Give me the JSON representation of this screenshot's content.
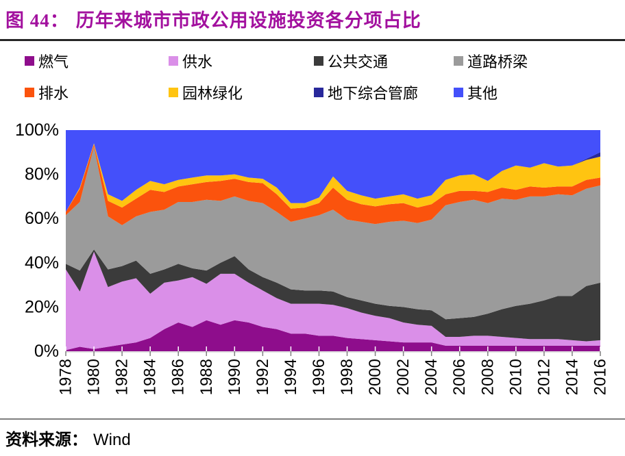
{
  "header": {
    "figure_label": "图 44：",
    "title": "历年来城市市政公用设施投资各分项占比",
    "title_color": "#A2109E"
  },
  "footer": {
    "source_label": "资料来源：",
    "source_value": "Wind"
  },
  "chart_data": {
    "type": "area",
    "stacked": true,
    "unit": "percent_share",
    "title": "历年来城市市政公用设施投资各分项占比",
    "xlabel": "",
    "ylabel": "",
    "ylim": [
      0,
      100
    ],
    "grid": false,
    "legend_position": "top",
    "y_ticks": [
      {
        "label": "100%",
        "value": 100
      },
      {
        "label": "80%",
        "value": 80
      },
      {
        "label": "60%",
        "value": 60
      },
      {
        "label": "40%",
        "value": 40
      },
      {
        "label": "20%",
        "value": 20
      },
      {
        "label": "0%",
        "value": 0
      }
    ],
    "x": [
      1978,
      1979,
      1980,
      1981,
      1982,
      1983,
      1984,
      1985,
      1986,
      1987,
      1988,
      1989,
      1990,
      1991,
      1992,
      1993,
      1994,
      1995,
      1996,
      1997,
      1998,
      1999,
      2000,
      2001,
      2002,
      2003,
      2004,
      2005,
      2006,
      2007,
      2008,
      2009,
      2010,
      2011,
      2012,
      2013,
      2014,
      2015,
      2016
    ],
    "x_tick_labels": [
      "1978",
      "1980",
      "1982",
      "1984",
      "1986",
      "1988",
      "1990",
      "1992",
      "1994",
      "1996",
      "1998",
      "2000",
      "2002",
      "2004",
      "2006",
      "2008",
      "2010",
      "2012",
      "2014",
      "2016"
    ],
    "series": [
      {
        "id": "gas",
        "name": "燃气",
        "color": "#8E0D8C",
        "values": [
          0.5,
          2,
          1,
          2,
          3,
          4,
          6,
          10,
          13,
          11,
          14,
          12,
          14,
          13,
          11,
          10,
          8,
          8,
          7,
          7,
          6,
          5.5,
          5,
          4.5,
          4,
          4,
          4,
          2.5,
          2.5,
          2.5,
          2.5,
          2.5,
          2.5,
          2.5,
          2.5,
          2.5,
          2.5,
          2.5,
          2.5
        ]
      },
      {
        "id": "water-supply",
        "name": "供水",
        "color": "#DA8FE8",
        "values": [
          36.5,
          25,
          44,
          27,
          28.5,
          29,
          20,
          21,
          19,
          22.5,
          16.5,
          23,
          21,
          18,
          16.5,
          14,
          13.5,
          13.5,
          14.5,
          14,
          13.5,
          12,
          11,
          10.5,
          9,
          8,
          7.5,
          4,
          4,
          4.5,
          4.5,
          4,
          3.5,
          3,
          3,
          3,
          2.5,
          2,
          2.5
        ]
      },
      {
        "id": "public-transit",
        "name": "公共交通",
        "color": "#3B3B3B",
        "values": [
          2.5,
          9.5,
          1,
          8,
          7,
          8,
          9,
          6,
          7.5,
          4,
          6,
          5,
          8,
          6,
          6,
          7,
          6.5,
          6,
          6,
          6,
          5,
          5.5,
          5.5,
          5.5,
          7,
          7,
          7,
          8,
          8.5,
          8.5,
          10,
          12.5,
          14.5,
          16,
          17.5,
          19.5,
          20,
          25,
          26
        ]
      },
      {
        "id": "roads-bridges",
        "name": "道路桥梁",
        "color": "#9B9B9B",
        "values": [
          22,
          31,
          46.5,
          24,
          18.5,
          20,
          28,
          27,
          28,
          30,
          32,
          28,
          27,
          31,
          33.5,
          32,
          30.5,
          32.5,
          34,
          37,
          35,
          35.5,
          36,
          38,
          39,
          39,
          41,
          51.5,
          52.5,
          53,
          50,
          50,
          48,
          48.5,
          47,
          46,
          45.5,
          44,
          44
        ]
      },
      {
        "id": "drainage",
        "name": "排水",
        "color": "#FB530D",
        "values": [
          1.5,
          6,
          1,
          7,
          8,
          8,
          10,
          8,
          7,
          8,
          8,
          9,
          8,
          8.5,
          9,
          8,
          6,
          5,
          5.5,
          10,
          9,
          8,
          8,
          8,
          8,
          7,
          7,
          5,
          5,
          4,
          5,
          5,
          4.5,
          4.5,
          4,
          3.5,
          4,
          4,
          3.5
        ]
      },
      {
        "id": "landscaping",
        "name": "园林绿化",
        "color": "#FFC411",
        "values": [
          0,
          0.5,
          0.5,
          3,
          3,
          4,
          4,
          3.5,
          3,
          3,
          3,
          2.5,
          2,
          2,
          2,
          3,
          2.5,
          2,
          2.5,
          5,
          4,
          4,
          3.5,
          3.5,
          4,
          4,
          4,
          6.5,
          7,
          7.5,
          5,
          7.5,
          11,
          8.5,
          11,
          9,
          9.5,
          9,
          9.5
        ]
      },
      {
        "id": "utility-tunnel",
        "name": "地下综合管廊",
        "color": "#28289B",
        "values": [
          0,
          0,
          0,
          0,
          0,
          0,
          0,
          0,
          0,
          0,
          0,
          0,
          0,
          0,
          0,
          0,
          0,
          0,
          0,
          0,
          0,
          0,
          0,
          0,
          0,
          0,
          0,
          0,
          0,
          0,
          0,
          0,
          0,
          0,
          0,
          0,
          0,
          0.5,
          2
        ]
      },
      {
        "id": "other",
        "name": "其他",
        "color": "#4450FA",
        "values": [
          37,
          26,
          6,
          29,
          32,
          27,
          23,
          24.5,
          22.5,
          21.5,
          20.5,
          20.5,
          20,
          21.5,
          22,
          26,
          33,
          33,
          30.5,
          21,
          27.5,
          29.5,
          31,
          30,
          29,
          31,
          29.5,
          22.5,
          20.5,
          20,
          23,
          18.5,
          16,
          17,
          15,
          16.5,
          16,
          13,
          10
        ]
      }
    ]
  }
}
